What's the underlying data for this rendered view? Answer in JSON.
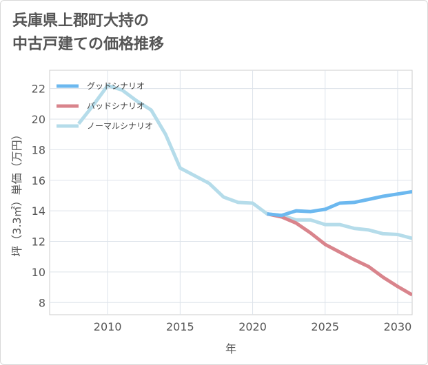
{
  "title": {
    "line1": "兵庫県上郡町大持の",
    "line2": "中古戸建ての価格推移"
  },
  "chart_data": {
    "type": "line",
    "xlabel": "年",
    "ylabel": "坪（3.3㎡）単価（万円）",
    "xlim": [
      2006,
      2031
    ],
    "ylim": [
      7.2,
      23.2
    ],
    "xticks": [
      2010,
      2015,
      2020,
      2025,
      2030
    ],
    "yticks": [
      8,
      10,
      12,
      14,
      16,
      18,
      20,
      22
    ],
    "grid": true,
    "legend_position": "top-left",
    "series": [
      {
        "name": "グッドシナリオ",
        "color": "#6cb8ef",
        "x": [
          2021,
          2022,
          2023,
          2024,
          2025,
          2026,
          2027,
          2028,
          2029,
          2030,
          2031
        ],
        "y": [
          13.8,
          13.7,
          14.0,
          13.95,
          14.1,
          14.5,
          14.55,
          14.75,
          14.95,
          15.1,
          15.25
        ]
      },
      {
        "name": "バッドシナリオ",
        "color": "#d9848c",
        "x": [
          2021,
          2022,
          2023,
          2024,
          2025,
          2026,
          2027,
          2028,
          2029,
          2030,
          2031
        ],
        "y": [
          13.8,
          13.6,
          13.2,
          12.55,
          11.8,
          11.3,
          10.8,
          10.35,
          9.65,
          9.05,
          8.5
        ]
      },
      {
        "name": "ノーマルシナリオ",
        "color": "#b5dcea",
        "x": [
          2008,
          2009,
          2010,
          2011,
          2012,
          2013,
          2014,
          2015,
          2016,
          2017,
          2018,
          2019,
          2020,
          2021,
          2022,
          2023,
          2024,
          2025,
          2026,
          2027,
          2028,
          2029,
          2030,
          2031
        ],
        "y": [
          19.7,
          20.9,
          22.2,
          21.9,
          21.2,
          20.6,
          19.0,
          16.8,
          16.3,
          15.8,
          14.9,
          14.55,
          14.5,
          13.8,
          13.7,
          13.4,
          13.4,
          13.1,
          13.1,
          12.85,
          12.75,
          12.5,
          12.45,
          12.2
        ]
      }
    ]
  }
}
